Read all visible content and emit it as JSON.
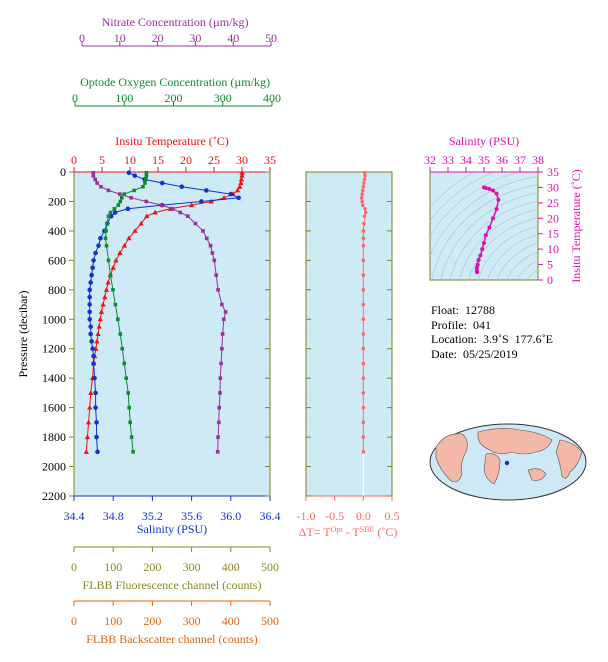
{
  "colors": {
    "nitrate": "#993399",
    "oxygen": "#118833",
    "temperature": "#ee1111",
    "salinity": "#1133cc",
    "salinity_inset": "#dd11aa",
    "delta": "#ff6666",
    "fluorescence": "#888822",
    "backscatter": "#dd6611",
    "plot_bg": "#cdeaf5",
    "axis": "#808020"
  },
  "axes": {
    "nitrate": {
      "label": "Nitrate Concentration (µm/kg)",
      "ticks": [
        "0",
        "10",
        "20",
        "30",
        "40",
        "50"
      ],
      "range": [
        0,
        50
      ]
    },
    "oxygen": {
      "label": "Optode Oxygen Concentration (µm/kg)",
      "ticks": [
        "0",
        "100",
        "200",
        "300",
        "400"
      ],
      "range": [
        0,
        400
      ]
    },
    "temperature": {
      "label": "Insitu Temperature (˚C)",
      "ticks": [
        "0",
        "5",
        "10",
        "15",
        "20",
        "25",
        "30",
        "35"
      ],
      "range": [
        0,
        35
      ]
    },
    "pressure": {
      "label": "Pressure (decibar)",
      "ticks": [
        "0",
        "200",
        "400",
        "600",
        "800",
        "1000",
        "1200",
        "1400",
        "1600",
        "1800",
        "2000",
        "2200"
      ],
      "range": [
        0,
        2200
      ]
    },
    "salinity": {
      "label": "Salinity (PSU)",
      "ticks": [
        "34.4",
        "34.8",
        "35.2",
        "35.6",
        "36.0",
        "36.4"
      ],
      "range": [
        34.4,
        36.4
      ]
    },
    "delta": {
      "label_pre": "ΔT= T",
      "label_sup1": "Opt",
      "label_mid": " - T",
      "label_sup2": "SBE",
      "label_post": " (˚C)",
      "ticks": [
        "-1.0",
        "-0.5",
        "0.0",
        "0.5"
      ],
      "range": [
        -1.0,
        0.5
      ]
    },
    "fluorescence": {
      "label": "FLBB Fluorescence channel (counts)",
      "ticks": [
        "0",
        "100",
        "200",
        "300",
        "400",
        "500"
      ],
      "range": [
        0,
        500
      ]
    },
    "backscatter": {
      "label": "FLBB Backscatter channel (counts)",
      "ticks": [
        "0",
        "100",
        "200",
        "300",
        "400",
        "500"
      ],
      "range": [
        0,
        500
      ]
    },
    "inset_salinity": {
      "label": "Salinity (PSU)",
      "ticks": [
        "32",
        "33",
        "34",
        "35",
        "36",
        "37",
        "38"
      ],
      "range": [
        32,
        38
      ]
    },
    "inset_temperature": {
      "label": "Insitu Temperature (˚C)",
      "ticks": [
        "0",
        "5",
        "10",
        "15",
        "20",
        "25",
        "30",
        "35"
      ],
      "range": [
        0,
        35
      ]
    }
  },
  "info": {
    "float_label": "Float:",
    "float_value": "12788",
    "profile_label": "Profile:",
    "profile_value": "041",
    "location_label": "Location:",
    "location_value": "3.9˚S  177.6˚E",
    "date_label": "Date:",
    "date_value": "05/25/2019"
  },
  "chart_data": [
    {
      "type": "line",
      "name": "Float profile",
      "y_axis": "Pressure (decibar)",
      "y_range": [
        0,
        2200
      ],
      "y_reversed": true,
      "series": [
        {
          "name": "Insitu Temperature (˚C)",
          "axis": "temperature",
          "points": [
            [
              30.0,
              5
            ],
            [
              30.0,
              25
            ],
            [
              29.9,
              50
            ],
            [
              29.8,
              75
            ],
            [
              29.6,
              100
            ],
            [
              29.2,
              125
            ],
            [
              28.4,
              150
            ],
            [
              26.8,
              175
            ],
            [
              24.5,
              200
            ],
            [
              21.0,
              225
            ],
            [
              17.2,
              250
            ],
            [
              14.5,
              275
            ],
            [
              13.0,
              300
            ],
            [
              12.0,
              350
            ],
            [
              10.9,
              400
            ],
            [
              9.8,
              450
            ],
            [
              9.0,
              500
            ],
            [
              8.2,
              550
            ],
            [
              7.5,
              600
            ],
            [
              7.0,
              650
            ],
            [
              6.5,
              700
            ],
            [
              6.1,
              750
            ],
            [
              5.8,
              800
            ],
            [
              5.5,
              850
            ],
            [
              5.2,
              900
            ],
            [
              4.9,
              950
            ],
            [
              4.7,
              1000
            ],
            [
              4.5,
              1050
            ],
            [
              4.3,
              1100
            ],
            [
              4.1,
              1150
            ],
            [
              3.9,
              1200
            ],
            [
              3.7,
              1250
            ],
            [
              3.5,
              1300
            ],
            [
              3.3,
              1400
            ],
            [
              3.0,
              1500
            ],
            [
              2.8,
              1600
            ],
            [
              2.6,
              1700
            ],
            [
              2.4,
              1800
            ],
            [
              2.2,
              1900
            ]
          ]
        },
        {
          "name": "Salinity (PSU)",
          "axis": "salinity",
          "points": [
            [
              34.96,
              5
            ],
            [
              35.02,
              25
            ],
            [
              35.12,
              50
            ],
            [
              35.3,
              75
            ],
            [
              35.5,
              100
            ],
            [
              35.75,
              125
            ],
            [
              36.0,
              150
            ],
            [
              36.08,
              175
            ],
            [
              35.7,
              200
            ],
            [
              35.3,
              225
            ],
            [
              34.95,
              250
            ],
            [
              34.82,
              275
            ],
            [
              34.78,
              300
            ],
            [
              34.74,
              350
            ],
            [
              34.71,
              400
            ],
            [
              34.67,
              450
            ],
            [
              34.65,
              500
            ],
            [
              34.62,
              550
            ],
            [
              34.6,
              600
            ],
            [
              34.59,
              650
            ],
            [
              34.58,
              700
            ],
            [
              34.57,
              750
            ],
            [
              34.56,
              800
            ],
            [
              34.56,
              850
            ],
            [
              34.56,
              900
            ],
            [
              34.56,
              950
            ],
            [
              34.56,
              1000
            ],
            [
              34.57,
              1050
            ],
            [
              34.57,
              1100
            ],
            [
              34.58,
              1150
            ],
            [
              34.59,
              1200
            ],
            [
              34.6,
              1250
            ],
            [
              34.6,
              1300
            ],
            [
              34.61,
              1400
            ],
            [
              34.62,
              1500
            ],
            [
              34.62,
              1600
            ],
            [
              34.63,
              1700
            ],
            [
              34.63,
              1800
            ],
            [
              34.64,
              1900
            ]
          ]
        },
        {
          "name": "Optode Oxygen Concentration (µm/kg)",
          "axis": "oxygen",
          "points": [
            [
              145,
              5
            ],
            [
              145,
              25
            ],
            [
              144,
              50
            ],
            [
              142,
              75
            ],
            [
              138,
              100
            ],
            [
              120,
              125
            ],
            [
              100,
              150
            ],
            [
              95,
              175
            ],
            [
              92,
              200
            ],
            [
              88,
              225
            ],
            [
              80,
              250
            ],
            [
              72,
              275
            ],
            [
              68,
              300
            ],
            [
              65,
              350
            ],
            [
              63,
              400
            ],
            [
              62,
              450
            ],
            [
              64,
              500
            ],
            [
              68,
              600
            ],
            [
              72,
              700
            ],
            [
              77,
              800
            ],
            [
              82,
              900
            ],
            [
              87,
              1000
            ],
            [
              92,
              1100
            ],
            [
              96,
              1200
            ],
            [
              100,
              1300
            ],
            [
              104,
              1400
            ],
            [
              108,
              1500
            ],
            [
              110,
              1600
            ],
            [
              112,
              1700
            ],
            [
              115,
              1800
            ],
            [
              118,
              1900
            ]
          ]
        },
        {
          "name": "Nitrate Concentration (µm/kg)",
          "axis": "nitrate",
          "points": [
            [
              3,
              5
            ],
            [
              3,
              25
            ],
            [
              3.5,
              50
            ],
            [
              4,
              75
            ],
            [
              5,
              100
            ],
            [
              7,
              125
            ],
            [
              10,
              150
            ],
            [
              13,
              175
            ],
            [
              17,
              200
            ],
            [
              21,
              225
            ],
            [
              24,
              250
            ],
            [
              26,
              275
            ],
            [
              28,
              300
            ],
            [
              30,
              350
            ],
            [
              32,
              400
            ],
            [
              33,
              450
            ],
            [
              34,
              500
            ],
            [
              34.5,
              550
            ],
            [
              35,
              600
            ],
            [
              35.5,
              700
            ],
            [
              36,
              800
            ],
            [
              37,
              900
            ],
            [
              38,
              950
            ],
            [
              37.5,
              1000
            ],
            [
              37.2,
              1100
            ],
            [
              37,
              1200
            ],
            [
              36.8,
              1300
            ],
            [
              36.6,
              1400
            ],
            [
              36.5,
              1500
            ],
            [
              36.3,
              1600
            ],
            [
              36.2,
              1700
            ],
            [
              36.0,
              1800
            ],
            [
              35.9,
              1900
            ]
          ]
        }
      ]
    },
    {
      "type": "scatter",
      "name": "Temperature difference",
      "x_axis": "ΔT (˚C)",
      "x_range": [
        -1.0,
        0.5
      ],
      "y_range": [
        0,
        2200
      ],
      "series": [
        {
          "name": "ΔT",
          "points": [
            [
              0.02,
              5
            ],
            [
              0.03,
              25
            ],
            [
              0.02,
              50
            ],
            [
              0.01,
              75
            ],
            [
              0.0,
              100
            ],
            [
              -0.01,
              125
            ],
            [
              -0.02,
              150
            ],
            [
              -0.03,
              175
            ],
            [
              -0.02,
              200
            ],
            [
              -0.01,
              225
            ],
            [
              0.03,
              250
            ],
            [
              0.04,
              275
            ],
            [
              0.02,
              300
            ],
            [
              0.01,
              350
            ],
            [
              0.0,
              400
            ],
            [
              0.0,
              450
            ],
            [
              0.0,
              500
            ],
            [
              0.0,
              600
            ],
            [
              0.0,
              700
            ],
            [
              0.0,
              800
            ],
            [
              0.0,
              900
            ],
            [
              0.0,
              1000
            ],
            [
              0.0,
              1100
            ],
            [
              0.0,
              1200
            ],
            [
              0.0,
              1300
            ],
            [
              0.0,
              1400
            ],
            [
              0.0,
              1500
            ],
            [
              0.0,
              1600
            ],
            [
              0.0,
              1700
            ],
            [
              0.0,
              1800
            ],
            [
              0.0,
              1900
            ]
          ]
        }
      ]
    },
    {
      "type": "line",
      "name": "T-S diagram",
      "x_axis": "Salinity (PSU)",
      "y_axis": "Insitu Temperature (˚C)",
      "x_range": [
        32,
        38
      ],
      "y_range": [
        0,
        35
      ],
      "series": [
        {
          "name": "T-S",
          "points": [
            [
              35.0,
              30.0
            ],
            [
              35.1,
              29.8
            ],
            [
              35.3,
              29.5
            ],
            [
              35.5,
              29.0
            ],
            [
              35.7,
              28.0
            ],
            [
              35.8,
              26.0
            ],
            [
              35.7,
              23.0
            ],
            [
              35.5,
              20.0
            ],
            [
              35.3,
              17.0
            ],
            [
              35.1,
              14.5
            ],
            [
              35.0,
              12.0
            ],
            [
              34.9,
              10.0
            ],
            [
              34.8,
              8.0
            ],
            [
              34.7,
              6.5
            ],
            [
              34.65,
              5.0
            ],
            [
              34.6,
              4.0
            ],
            [
              34.6,
              3.0
            ],
            [
              34.62,
              2.5
            ]
          ]
        }
      ]
    }
  ]
}
